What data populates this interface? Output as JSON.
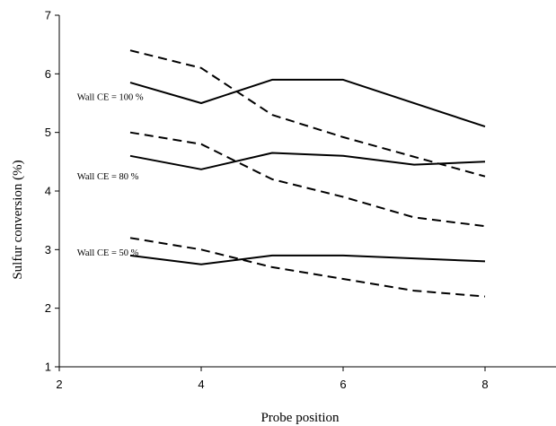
{
  "chart_data": {
    "type": "line",
    "title": "",
    "xlabel": "Probe position",
    "ylabel": "Sulfur conversion (%)",
    "xlim": [
      2,
      9
    ],
    "ylim": [
      1,
      7
    ],
    "xticks": [
      2,
      4,
      6,
      8
    ],
    "yticks": [
      1,
      2,
      3,
      4,
      5,
      6,
      7
    ],
    "grid": false,
    "series": [
      {
        "style": "solid",
        "x": [
          3,
          4,
          5,
          6,
          8
        ],
        "y": [
          5.85,
          5.5,
          5.9,
          5.9,
          5.1
        ]
      },
      {
        "style": "dashed",
        "x": [
          3,
          4,
          5,
          6,
          8
        ],
        "y": [
          6.4,
          6.1,
          5.3,
          4.92,
          4.25
        ]
      },
      {
        "style": "solid",
        "x": [
          3,
          4,
          5,
          6,
          7,
          8
        ],
        "y": [
          4.6,
          4.37,
          4.65,
          4.6,
          4.45,
          4.5
        ]
      },
      {
        "style": "dashed",
        "x": [
          3,
          4,
          5,
          6,
          7,
          8
        ],
        "y": [
          5.0,
          4.8,
          4.2,
          3.9,
          3.55,
          3.4
        ]
      },
      {
        "style": "solid",
        "x": [
          3,
          4,
          5,
          6,
          8
        ],
        "y": [
          2.9,
          2.75,
          2.9,
          2.9,
          2.8
        ]
      },
      {
        "style": "dashed",
        "x": [
          3,
          4,
          5,
          6,
          7,
          8
        ],
        "y": [
          3.2,
          3.0,
          2.7,
          2.5,
          2.3,
          2.2
        ]
      }
    ],
    "annotations": [
      {
        "text": "Wall CE = 100 %",
        "x": 2.25,
        "y": 5.55
      },
      {
        "text": "Wall CE = 80 %",
        "x": 2.25,
        "y": 4.2
      },
      {
        "text": "Wall CE = 50 %",
        "x": 2.25,
        "y": 2.9
      }
    ]
  }
}
